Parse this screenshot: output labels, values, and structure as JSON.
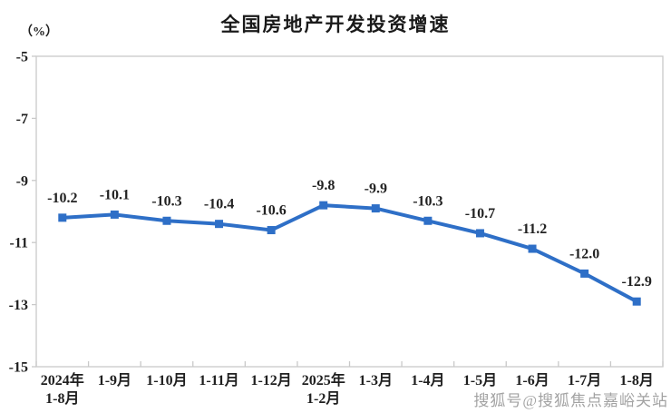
{
  "watermark": "搜狐号@搜狐焦点嘉峪关站",
  "chart_data": {
    "type": "line",
    "title": "全国房地产开发投资增速",
    "unit": "（%）",
    "categories": [
      "2024年\n1-8月",
      "1-9月",
      "1-10月",
      "1-11月",
      "1-12月",
      "2025年\n1-2月",
      "1-3月",
      "1-4月",
      "1-5月",
      "1-6月",
      "1-7月",
      "1-8月"
    ],
    "values": [
      -10.2,
      -10.1,
      -10.3,
      -10.4,
      -10.6,
      -9.8,
      -9.9,
      -10.3,
      -10.7,
      -11.2,
      -12.0,
      -12.9
    ],
    "data_labels": [
      "-10.2",
      "-10.1",
      "-10.3",
      "-10.4",
      "-10.6",
      "-9.8",
      "-9.9",
      "-10.3",
      "-10.7",
      "-11.2",
      "-12.0",
      "-12.9"
    ],
    "xlabel": "",
    "ylabel": "(%)",
    "ylim": [
      -15,
      -5
    ],
    "yticks": [
      -5,
      -7,
      -9,
      -11,
      -13,
      -15
    ],
    "grid": false,
    "legend": "none",
    "line_color": "#2e6fc7",
    "marker": "square",
    "axis_color": "#c9c9c9",
    "label_color": "#222222"
  }
}
